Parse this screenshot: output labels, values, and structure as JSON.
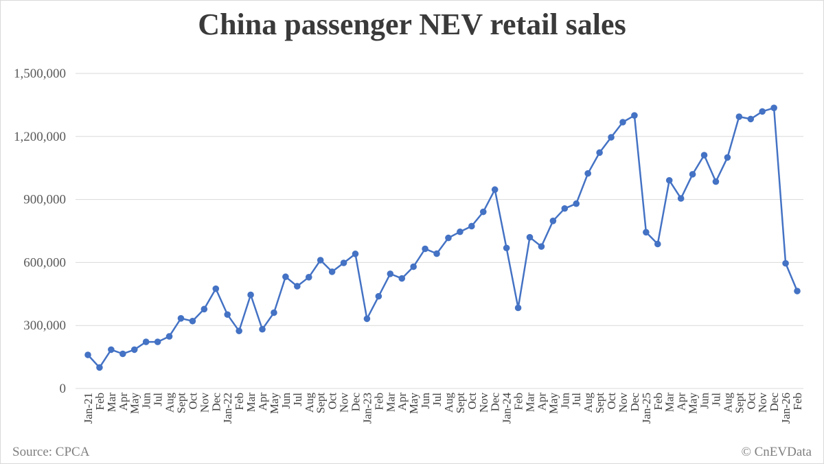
{
  "chart_data": {
    "type": "line",
    "title": "China passenger NEV retail sales",
    "xlabel": "",
    "ylabel": "",
    "ylim": [
      0,
      1500000
    ],
    "yticks": [
      0,
      300000,
      600000,
      900000,
      1200000,
      1500000
    ],
    "ytick_labels": [
      "0",
      "300,000",
      "600,000",
      "900,000",
      "1,200,000",
      "1,500,000"
    ],
    "grid": true,
    "legend": "none",
    "line_color": "#4472c4",
    "categories": [
      "Jan-21",
      "Feb",
      "Mar",
      "Apr",
      "May",
      "Jun",
      "Jul",
      "Aug",
      "Sept",
      "Oct",
      "Nov",
      "Dec",
      "Jan-22",
      "Feb",
      "Mar",
      "Apr",
      "May",
      "Jun",
      "Jul",
      "Aug",
      "Sept",
      "Oct",
      "Nov",
      "Dec",
      "Jan-23",
      "Feb",
      "Mar",
      "Apr",
      "May",
      "Jun",
      "Jul",
      "Aug",
      "Sept",
      "Oct",
      "Nov",
      "Dec",
      "Jan-24",
      "Feb",
      "Mar",
      "Apr",
      "May",
      "Jun",
      "Jul",
      "Aug",
      "Sept",
      "Oct",
      "Nov",
      "Dec",
      "Jan-25",
      "Feb",
      "Mar",
      "Apr",
      "May",
      "Jun",
      "Jul",
      "Aug",
      "Sept",
      "Oct",
      "Nov",
      "Dec",
      "Jan-26",
      "Feb"
    ],
    "values": [
      160000,
      100000,
      185000,
      165000,
      185000,
      222000,
      222000,
      248000,
      334000,
      321000,
      378000,
      475000,
      352000,
      274000,
      446000,
      282000,
      361000,
      532000,
      487000,
      530000,
      611000,
      556000,
      598000,
      641000,
      332000,
      439000,
      546000,
      524000,
      580000,
      665000,
      642000,
      717000,
      746000,
      773000,
      841000,
      947000,
      669000,
      384000,
      720000,
      676000,
      798000,
      857000,
      880000,
      1024000,
      1123000,
      1196000,
      1268000,
      1300000,
      744000,
      688000,
      991000,
      905000,
      1020000,
      1111000,
      985000,
      1100000,
      1294000,
      1283000,
      1319000,
      1336000,
      596000,
      464000
    ]
  },
  "footer": {
    "source": "Source: CPCA",
    "credit": "© CnEVData"
  }
}
